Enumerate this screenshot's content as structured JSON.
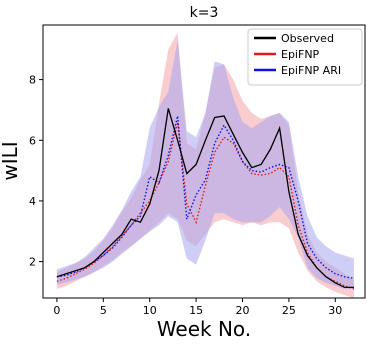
{
  "chart_data": {
    "type": "line",
    "title": "k=3",
    "xlabel": "Week No.",
    "ylabel": "wILI",
    "xlim": [
      -1.5,
      33.2
    ],
    "ylim": [
      0.8,
      9.8
    ],
    "xticks": [
      0,
      5,
      10,
      15,
      20,
      25,
      30
    ],
    "yticks": [
      2,
      4,
      6,
      8
    ],
    "grid": false,
    "legend_position": "top-right",
    "x": [
      0,
      1,
      2,
      3,
      4,
      5,
      6,
      7,
      8,
      9,
      10,
      11,
      12,
      13,
      14,
      15,
      16,
      17,
      18,
      19,
      20,
      21,
      22,
      23,
      24,
      25,
      26,
      27,
      28,
      29,
      30,
      31,
      32
    ],
    "series": [
      {
        "name": "Observed",
        "color": "#000000",
        "style": "solid",
        "values": [
          1.5,
          1.6,
          1.7,
          1.8,
          2.0,
          2.3,
          2.6,
          2.9,
          3.4,
          3.3,
          3.9,
          5.0,
          7.05,
          6.0,
          4.9,
          5.2,
          6.0,
          6.75,
          6.8,
          6.2,
          5.6,
          5.1,
          5.2,
          5.7,
          6.4,
          4.3,
          2.9,
          2.2,
          1.8,
          1.5,
          1.3,
          1.15,
          1.15
        ],
        "lower": null,
        "upper": null
      },
      {
        "name": "EpiFNP",
        "color": "#e31a1c",
        "band_color": "#f4a3a8",
        "style": "dotted",
        "values": [
          1.35,
          1.45,
          1.6,
          1.75,
          1.95,
          2.2,
          2.5,
          2.85,
          3.2,
          3.6,
          4.0,
          4.6,
          5.3,
          6.6,
          3.9,
          3.3,
          4.5,
          5.6,
          6.1,
          5.9,
          5.3,
          4.9,
          4.85,
          4.9,
          5.1,
          4.8,
          3.2,
          2.3,
          1.8,
          1.5,
          1.35,
          1.2,
          1.1
        ],
        "lower": [
          1.1,
          1.2,
          1.35,
          1.5,
          1.65,
          1.85,
          2.05,
          2.3,
          2.5,
          2.75,
          3.0,
          3.3,
          3.6,
          3.4,
          2.7,
          2.5,
          2.9,
          3.3,
          3.4,
          3.3,
          3.2,
          3.3,
          3.2,
          3.3,
          3.3,
          3.1,
          2.3,
          1.7,
          1.35,
          1.15,
          1.0,
          0.9,
          0.8
        ],
        "upper": [
          1.65,
          1.8,
          1.95,
          2.1,
          2.35,
          2.7,
          3.1,
          3.65,
          4.1,
          4.7,
          5.2,
          7.2,
          9.0,
          9.55,
          5.9,
          5.7,
          6.9,
          8.4,
          8.5,
          8.0,
          7.3,
          6.9,
          6.7,
          6.8,
          6.9,
          6.5,
          4.3,
          2.9,
          2.3,
          2.0,
          1.8,
          1.6,
          1.4
        ]
      },
      {
        "name": "EpiFNP ARI",
        "color": "#1010e0",
        "band_color": "#a5a5f0",
        "style": "dotted",
        "values": [
          1.5,
          1.55,
          1.65,
          1.8,
          2.0,
          2.2,
          2.45,
          2.8,
          3.2,
          3.5,
          4.8,
          4.6,
          5.5,
          6.8,
          3.4,
          4.2,
          4.7,
          5.9,
          6.5,
          6.0,
          5.3,
          5.0,
          4.95,
          5.1,
          5.2,
          5.1,
          4.0,
          2.6,
          2.1,
          1.8,
          1.6,
          1.5,
          1.45
        ],
        "lower": [
          1.25,
          1.3,
          1.4,
          1.5,
          1.65,
          1.8,
          2.0,
          2.25,
          2.5,
          2.75,
          3.0,
          3.2,
          3.5,
          3.3,
          2.1,
          1.9,
          2.7,
          3.6,
          3.6,
          3.4,
          3.3,
          3.3,
          3.3,
          3.5,
          3.8,
          3.4,
          2.8,
          1.8,
          1.45,
          1.3,
          1.2,
          1.1,
          1.1
        ],
        "upper": [
          1.75,
          1.85,
          1.95,
          2.15,
          2.45,
          2.75,
          3.2,
          3.7,
          4.3,
          4.8,
          6.4,
          7.1,
          7.6,
          9.3,
          6.3,
          6.1,
          6.9,
          8.6,
          8.5,
          7.4,
          6.6,
          6.4,
          6.6,
          6.8,
          6.9,
          6.6,
          4.8,
          3.5,
          2.8,
          2.5,
          2.3,
          2.2,
          2.1
        ]
      }
    ]
  }
}
